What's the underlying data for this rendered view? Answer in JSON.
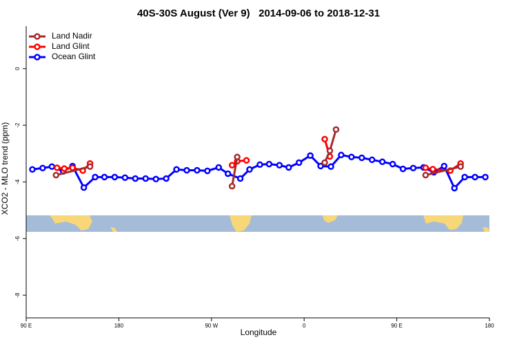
{
  "chart_data": {
    "type": "line",
    "title": "40S-30S August (Ver 9)   2014-09-06 to 2018-12-31",
    "xlabel": "Longitude",
    "ylabel": "XCO2 - MLO trend (ppm)",
    "xlim": [
      90,
      540
    ],
    "ylim": [
      -8.8,
      1.5
    ],
    "xticks": [
      {
        "value": 90,
        "label": "90 E"
      },
      180,
      {
        "value": 270,
        "label": "90 W"
      },
      {
        "value": 360,
        "label": "0"
      },
      {
        "value": 450,
        "label": "90 E"
      },
      {
        "value": 540,
        "label": "180"
      }
    ],
    "yticks": [
      0,
      -2,
      -4,
      -6,
      -8
    ],
    "legend": "top-left",
    "series": [
      {
        "name": "Land Nadir",
        "color": "#a52a2a",
        "x": [
          119,
          152,
          null,
          290,
          295,
          null,
          380,
          385,
          391,
          null,
          478,
          512
        ],
        "values": [
          -3.76,
          -3.46,
          null,
          -4.15,
          -3.12,
          null,
          -3.32,
          -2.9,
          -2.15,
          null,
          -3.76,
          -3.46
        ]
      },
      {
        "name": "Land Glint",
        "color": "#ff0000",
        "x": [
          120,
          127,
          135,
          145,
          152,
          null,
          290,
          295,
          304,
          null,
          380,
          385,
          null,
          478,
          485,
          502,
          512
        ],
        "values": [
          -3.5,
          -3.53,
          -3.5,
          -3.6,
          -3.35,
          null,
          -3.41,
          -3.27,
          -3.24,
          null,
          -2.49,
          -3.1,
          null,
          -3.5,
          -3.55,
          -3.6,
          -3.35
        ]
      },
      {
        "name": "Ocean Glint",
        "color": "#0000ff",
        "x": [
          96,
          106,
          115,
          126,
          135,
          146,
          157,
          166,
          176,
          186,
          196,
          206,
          216,
          226,
          236,
          246,
          256,
          266,
          277,
          286,
          298,
          307,
          317,
          326,
          336,
          345,
          355,
          366,
          376,
          386,
          396,
          406,
          416,
          426,
          436,
          446,
          456,
          466,
          476,
          486,
          496,
          506,
          516,
          526,
          536
        ],
        "values": [
          -3.56,
          -3.51,
          -3.46,
          -3.63,
          -3.44,
          -4.2,
          -3.83,
          -3.83,
          -3.83,
          -3.85,
          -3.88,
          -3.88,
          -3.9,
          -3.88,
          -3.56,
          -3.59,
          -3.59,
          -3.61,
          -3.49,
          -3.71,
          -3.88,
          -3.56,
          -3.39,
          -3.37,
          -3.41,
          -3.49,
          -3.32,
          -3.07,
          -3.44,
          -3.46,
          -3.05,
          -3.12,
          -3.15,
          -3.22,
          -3.29,
          -3.37,
          -3.54,
          -3.51,
          -3.49,
          -3.66,
          -3.44,
          -4.22,
          -3.83,
          -3.83,
          -3.83
        ]
      }
    ]
  }
}
